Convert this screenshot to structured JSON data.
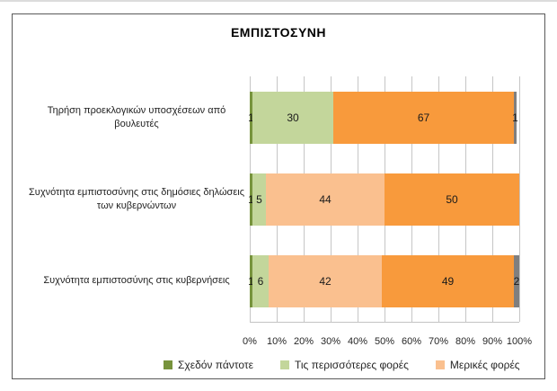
{
  "chart_data": {
    "type": "bar",
    "orientation": "horizontal-stacked",
    "title": "ΕΜΠΙΣΤΟΣΥΝΗ",
    "categories": [
      "Τηρήση προεκλογικών υποσχέσεων από βουλευτές",
      "Συχνότητα εμπιστοσύνης στις δημόσιες δηλώσεις των κυβερνώντων",
      "Συχνότητα εμπιστοσύνης στις κυβερνήσεις"
    ],
    "series": [
      {
        "key": "almost-always",
        "label": "Σχεδόν πάντοτε",
        "color": "#77933C",
        "in_legend": true,
        "values": [
          1,
          1,
          1
        ]
      },
      {
        "key": "most-times",
        "label": "Τις περισσότερες φορές",
        "color": "#C3D69B",
        "in_legend": true,
        "values": [
          30,
          5,
          6
        ]
      },
      {
        "key": "sometimes",
        "label": "Μερικές φορές",
        "color": "#FAC08F",
        "in_legend": true,
        "values": [
          0,
          44,
          42
        ]
      },
      {
        "key": "unlabeled-dark-orange",
        "label": "",
        "color": "#F89A3C",
        "in_legend": false,
        "values": [
          67,
          50,
          49
        ]
      },
      {
        "key": "unlabeled-gray",
        "label": "",
        "color": "#7F7F7F",
        "in_legend": false,
        "values": [
          1,
          0,
          2
        ]
      }
    ],
    "x_ticks": [
      "0%",
      "10%",
      "20%",
      "30%",
      "40%",
      "50%",
      "60%",
      "70%",
      "80%",
      "90%",
      "100%"
    ],
    "xlim": [
      0,
      100
    ],
    "grid": "vertical",
    "legend_position": "bottom",
    "show_value_labels_over": 0
  },
  "ui_colors": {
    "frame_border": "#595959",
    "gridline": "#c6c6c6",
    "label_text": "#1a1a1a"
  }
}
